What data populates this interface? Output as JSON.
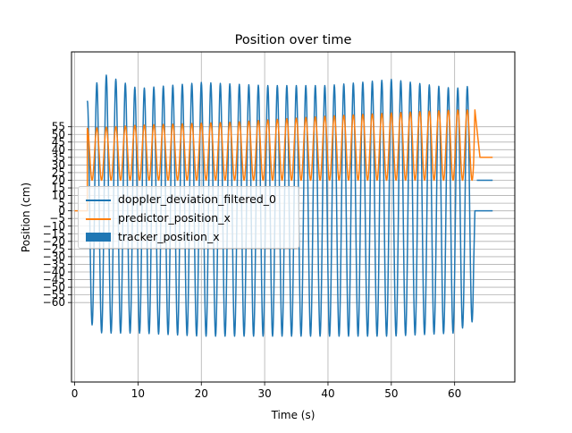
{
  "chart_data": {
    "type": "line",
    "title": "Position over time",
    "xlabel": "Time (s)",
    "ylabel": "Position (cm)",
    "xlim": [
      -0.5,
      69.5
    ],
    "ylim": [
      -112,
      104
    ],
    "grid": true,
    "legend_position": "center-left",
    "x_ticks": [
      0,
      10,
      20,
      30,
      40,
      50,
      60
    ],
    "x_tick_labels": [
      "0",
      "10",
      "20",
      "30",
      "40",
      "50",
      "60"
    ],
    "y_ticks": [
      55,
      50,
      45,
      40,
      35,
      30,
      25,
      20,
      15,
      10,
      5,
      0,
      -5,
      -10,
      -15,
      -20,
      -25,
      -30,
      -35,
      -40,
      -45,
      -50,
      -55,
      -60
    ],
    "y_tick_labels": [
      "55",
      "50",
      "45",
      "40",
      "35",
      "30",
      "25",
      "20",
      "15",
      "10",
      "5",
      "0",
      "−5",
      "−10",
      "−15",
      "−20",
      "−25",
      "−30",
      "−35",
      "−40",
      "−45",
      "−50",
      "−55",
      "−60"
    ],
    "series": [
      {
        "name": "doppler_deviation_filtered_0",
        "color": "#1f77b4",
        "style": "line",
        "start": 2.0,
        "end": 63.0,
        "period": 1.5,
        "amplitude_peaks": [
          [
            2.0,
            72
          ],
          [
            4.3,
            90
          ],
          [
            10,
            80
          ],
          [
            20,
            84
          ],
          [
            30,
            82
          ],
          [
            40,
            82
          ],
          [
            50,
            86
          ],
          [
            60,
            80
          ],
          [
            63,
            82
          ]
        ],
        "amplitude_troughs": [
          [
            2.0,
            -72
          ],
          [
            4.3,
            -80
          ],
          [
            10,
            -80
          ],
          [
            20,
            -82
          ],
          [
            30,
            -82
          ],
          [
            40,
            -82
          ],
          [
            50,
            -82
          ],
          [
            60,
            -80
          ],
          [
            63,
            -72
          ]
        ],
        "tail_points": [
          [
            63.2,
            0
          ],
          [
            66,
            0
          ]
        ]
      },
      {
        "name": "predictor_position_x",
        "color": "#ff7f0e",
        "style": "line",
        "baseline_before": [
          [
            0,
            0
          ],
          [
            2.0,
            0
          ]
        ],
        "start": 2.0,
        "end": 63.0,
        "period": 1.5,
        "high_points": [
          [
            2.2,
            54
          ],
          [
            10,
            56
          ],
          [
            25,
            58
          ],
          [
            40,
            62
          ],
          [
            50,
            64
          ],
          [
            60,
            66
          ],
          [
            63,
            66
          ]
        ],
        "low_points": [
          [
            2.2,
            20
          ],
          [
            20,
            20
          ],
          [
            63,
            20
          ]
        ],
        "tail_points": [
          [
            63.2,
            66
          ],
          [
            64.0,
            35
          ],
          [
            66,
            35
          ]
        ]
      },
      {
        "name": "tracker_position_x",
        "color": "#1f77b4",
        "style": "patch",
        "points": [
          [
            63.5,
            20
          ],
          [
            66,
            20
          ]
        ]
      }
    ]
  }
}
